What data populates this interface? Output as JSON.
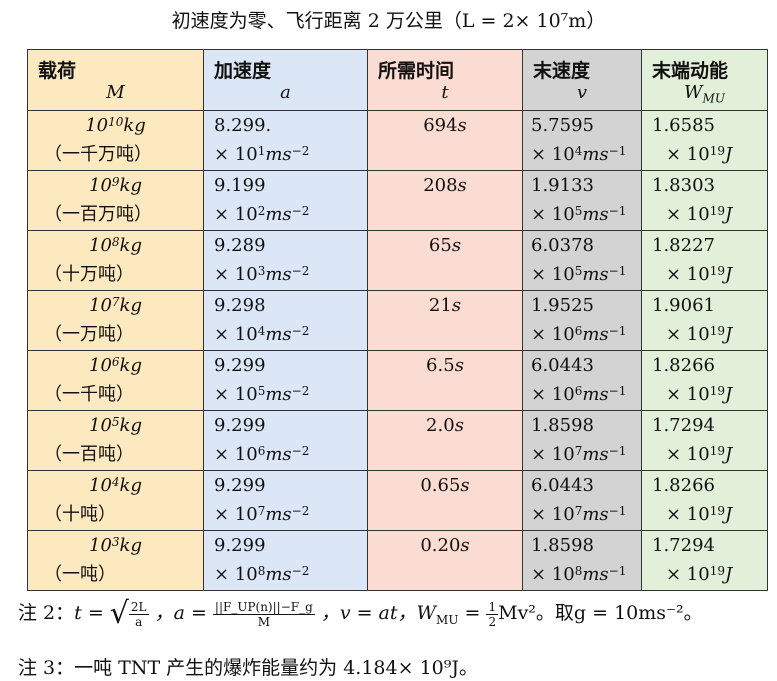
{
  "title": "初速度为零、飞行距离 2 万公里（L = 2× 10⁷m）",
  "headers": [
    {
      "label": "载荷",
      "symbol": "M"
    },
    {
      "label": "加速度",
      "symbol": "a"
    },
    {
      "label": "所需时间",
      "symbol": "t"
    },
    {
      "label": "末速度",
      "symbol": "v"
    },
    {
      "label": "末端动能",
      "symbol": "W"
    }
  ],
  "header_W_sub": "MU",
  "rows": [
    {
      "m_exp": "10",
      "m_cn": "（一千万吨）",
      "a_mant": "8.299.",
      "a_exp": "1",
      "t": "694",
      "v_mant": "5.7595",
      "v_exp": "4",
      "w_mant": "1.6585",
      "w_exp": "19"
    },
    {
      "m_exp": "9",
      "m_cn": "（一百万吨）",
      "a_mant": "9.199",
      "a_exp": "2",
      "t": "208",
      "v_mant": "1.9133",
      "v_exp": "5",
      "w_mant": "1.8303",
      "w_exp": "19"
    },
    {
      "m_exp": "8",
      "m_cn": "（十万吨）",
      "a_mant": "9.289",
      "a_exp": "3",
      "t": "65",
      "v_mant": "6.0378",
      "v_exp": "5",
      "w_mant": "1.8227",
      "w_exp": "19"
    },
    {
      "m_exp": "7",
      "m_cn": "（一万吨）",
      "a_mant": "9.298",
      "a_exp": "4",
      "t": "21",
      "v_mant": "1.9525",
      "v_exp": "6",
      "w_mant": "1.9061",
      "w_exp": "19"
    },
    {
      "m_exp": "6",
      "m_cn": "（一千吨）",
      "a_mant": "9.299",
      "a_exp": "5",
      "t": "6.5",
      "v_mant": "6.0443",
      "v_exp": "6",
      "w_mant": "1.8266",
      "w_exp": "19"
    },
    {
      "m_exp": "5",
      "m_cn": "（一百吨）",
      "a_mant": "9.299",
      "a_exp": "6",
      "t": "2.0",
      "v_mant": "1.8598",
      "v_exp": "7",
      "w_mant": "1.7294",
      "w_exp": "19"
    },
    {
      "m_exp": "4",
      "m_cn": "（十吨）",
      "a_mant": "9.299",
      "a_exp": "7",
      "t": "0.65",
      "v_mant": "6.0443",
      "v_exp": "7",
      "w_mant": "1.8266",
      "w_exp": "19"
    },
    {
      "m_exp": "3",
      "m_cn": "（一吨）",
      "a_mant": "9.299",
      "a_exp": "8",
      "t": "0.20",
      "v_mant": "1.8598",
      "v_exp": "8",
      "w_mant": "1.7294",
      "w_exp": "19"
    }
  ],
  "note2": {
    "prefix": "注 2：",
    "t_eq": "t =",
    "sqrt_num": "2L",
    "sqrt_den": "a",
    "a_eq": "，a =",
    "a_frac_num": "||F_UP(n)||−F_g",
    "a_frac_den": "M",
    "v_eq": "，v = at，W",
    "w_sub": "MU",
    "w_eq": " =",
    "half_num": "1",
    "half_den": "2",
    "mv2": "Mv²。取g = 10ms⁻²。"
  },
  "note3": "注 3：一吨 TNT 产生的爆炸能量约为 4.184× 10⁹J。"
}
